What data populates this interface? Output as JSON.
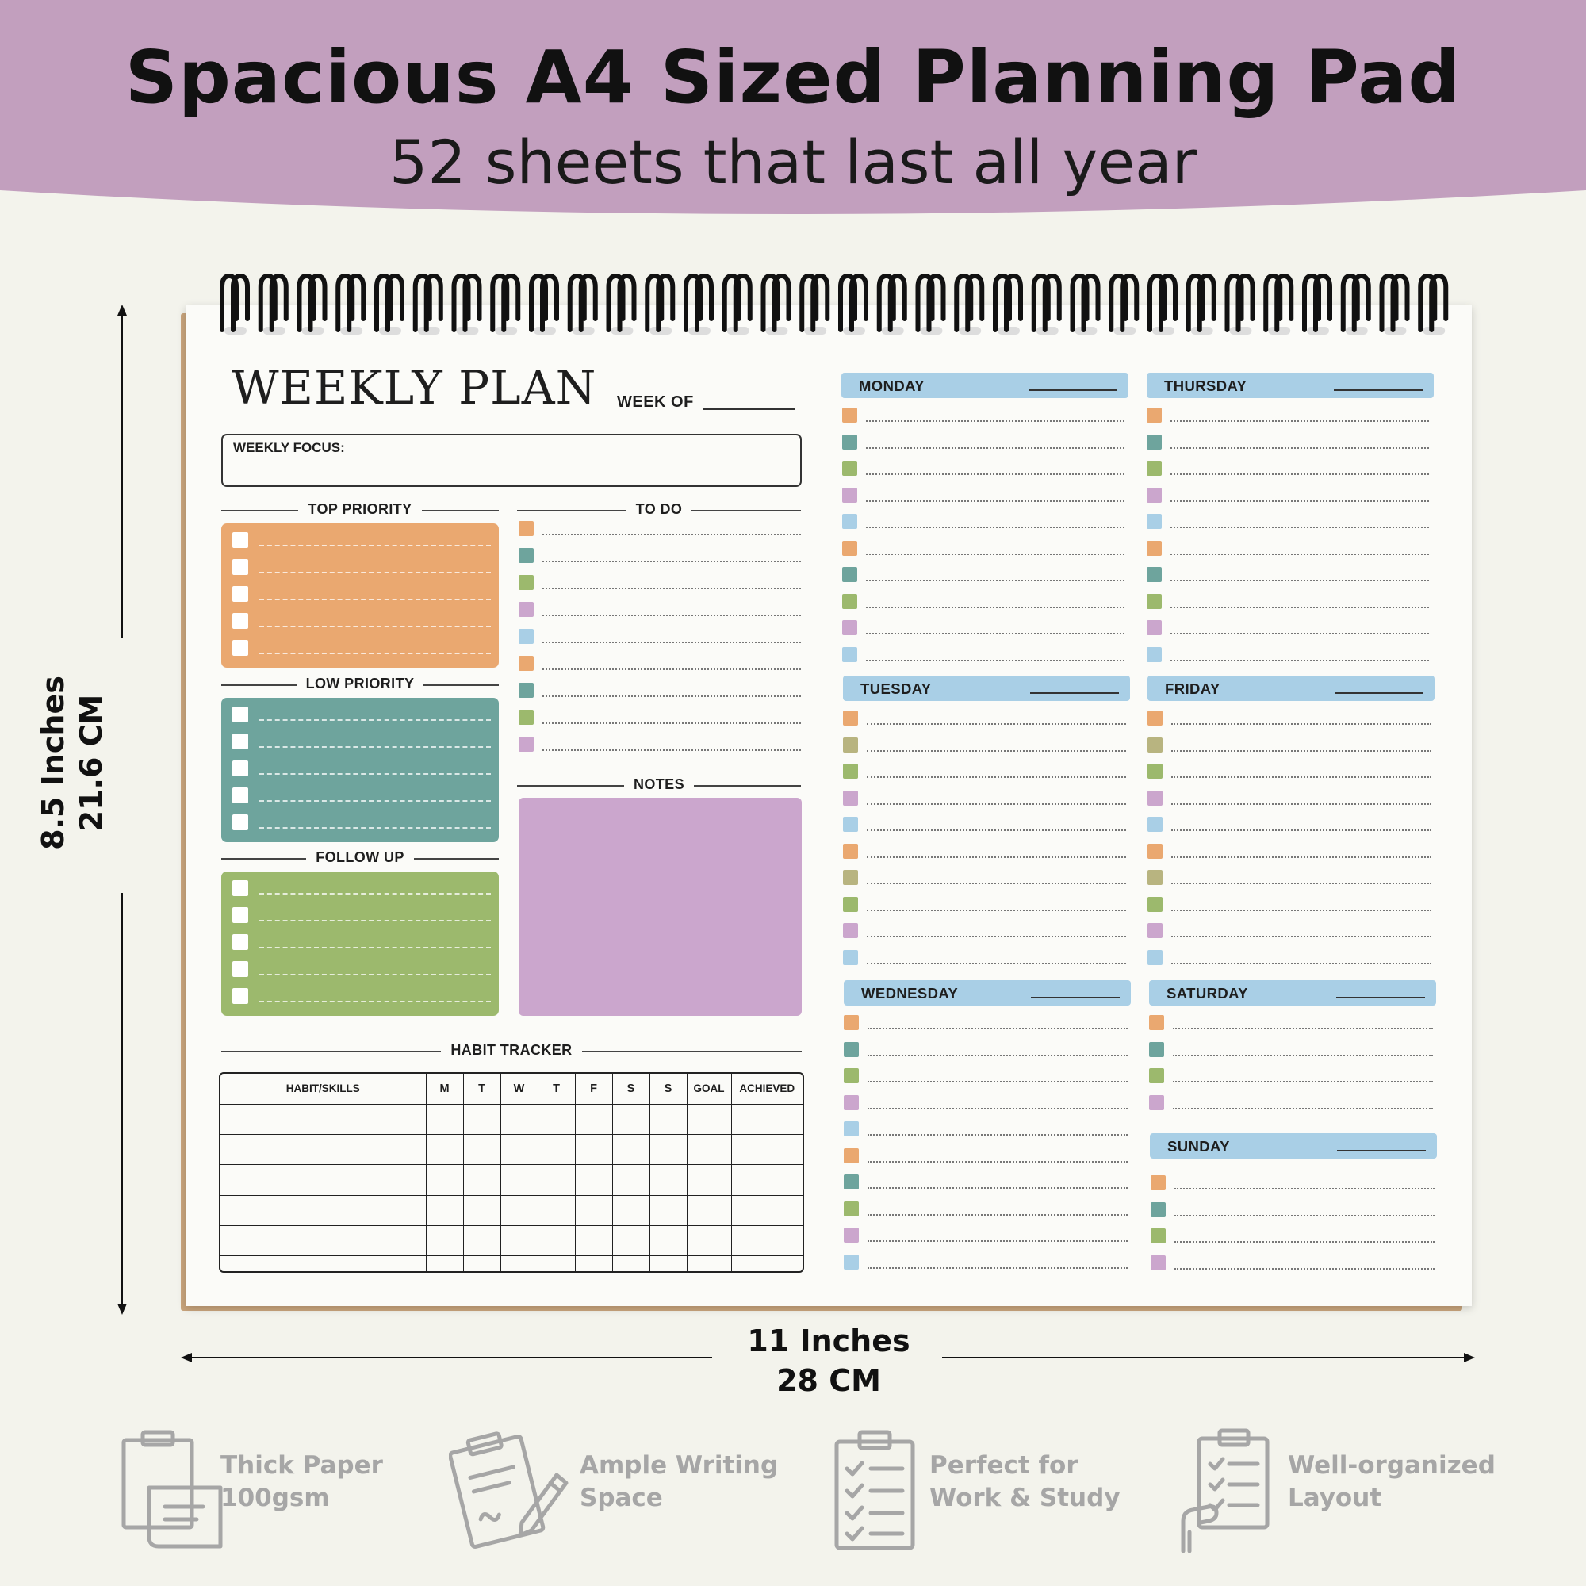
{
  "banner": {
    "title": "Spacious A4 Sized Planning Pad",
    "subtitle": "52 sheets that last all year",
    "color": "#c29fbe"
  },
  "dimensions": {
    "height_in": "8.5 Inches",
    "height_cm": "21.6 CM",
    "width_in": "11 Inches",
    "width_cm": "28 CM"
  },
  "planner": {
    "title": "WEEKLY PLAN",
    "week_of": "WEEK OF",
    "weekly_focus": "WEEKLY FOCUS:",
    "top_priority": "TOP PRIORITY",
    "low_priority": "LOW PRIORITY",
    "follow_up": "FOLLOW UP",
    "to_do": "TO DO",
    "notes": "NOTES",
    "habit_tracker": "HABIT TRACKER",
    "habit_columns": [
      "HABIT/SKILLS",
      "M",
      "T",
      "W",
      "T",
      "F",
      "S",
      "S",
      "GOAL",
      "ACHIEVED"
    ],
    "days": [
      "MONDAY",
      "TUESDAY",
      "WEDNESDAY",
      "THURSDAY",
      "FRIDAY",
      "SATURDAY",
      "SUNDAY"
    ],
    "colors": {
      "orange": "#eaa870",
      "teal": "#6ea49d",
      "green": "#9cb96d",
      "purple": "#cba6cd",
      "blue": "#a9cfe6",
      "olive": "#b8b480"
    }
  },
  "features": [
    {
      "line1": "Thick Paper",
      "line2": "100gsm",
      "icon": "clipboard-document-icon"
    },
    {
      "line1": "Ample Writing",
      "line2": "Space",
      "icon": "clipboard-pencil-icon"
    },
    {
      "line1": "Perfect for",
      "line2": "Work & Study",
      "icon": "checklist-clipboard-icon"
    },
    {
      "line1": "Well-organized",
      "line2": "Layout",
      "icon": "hand-checklist-icon"
    }
  ]
}
